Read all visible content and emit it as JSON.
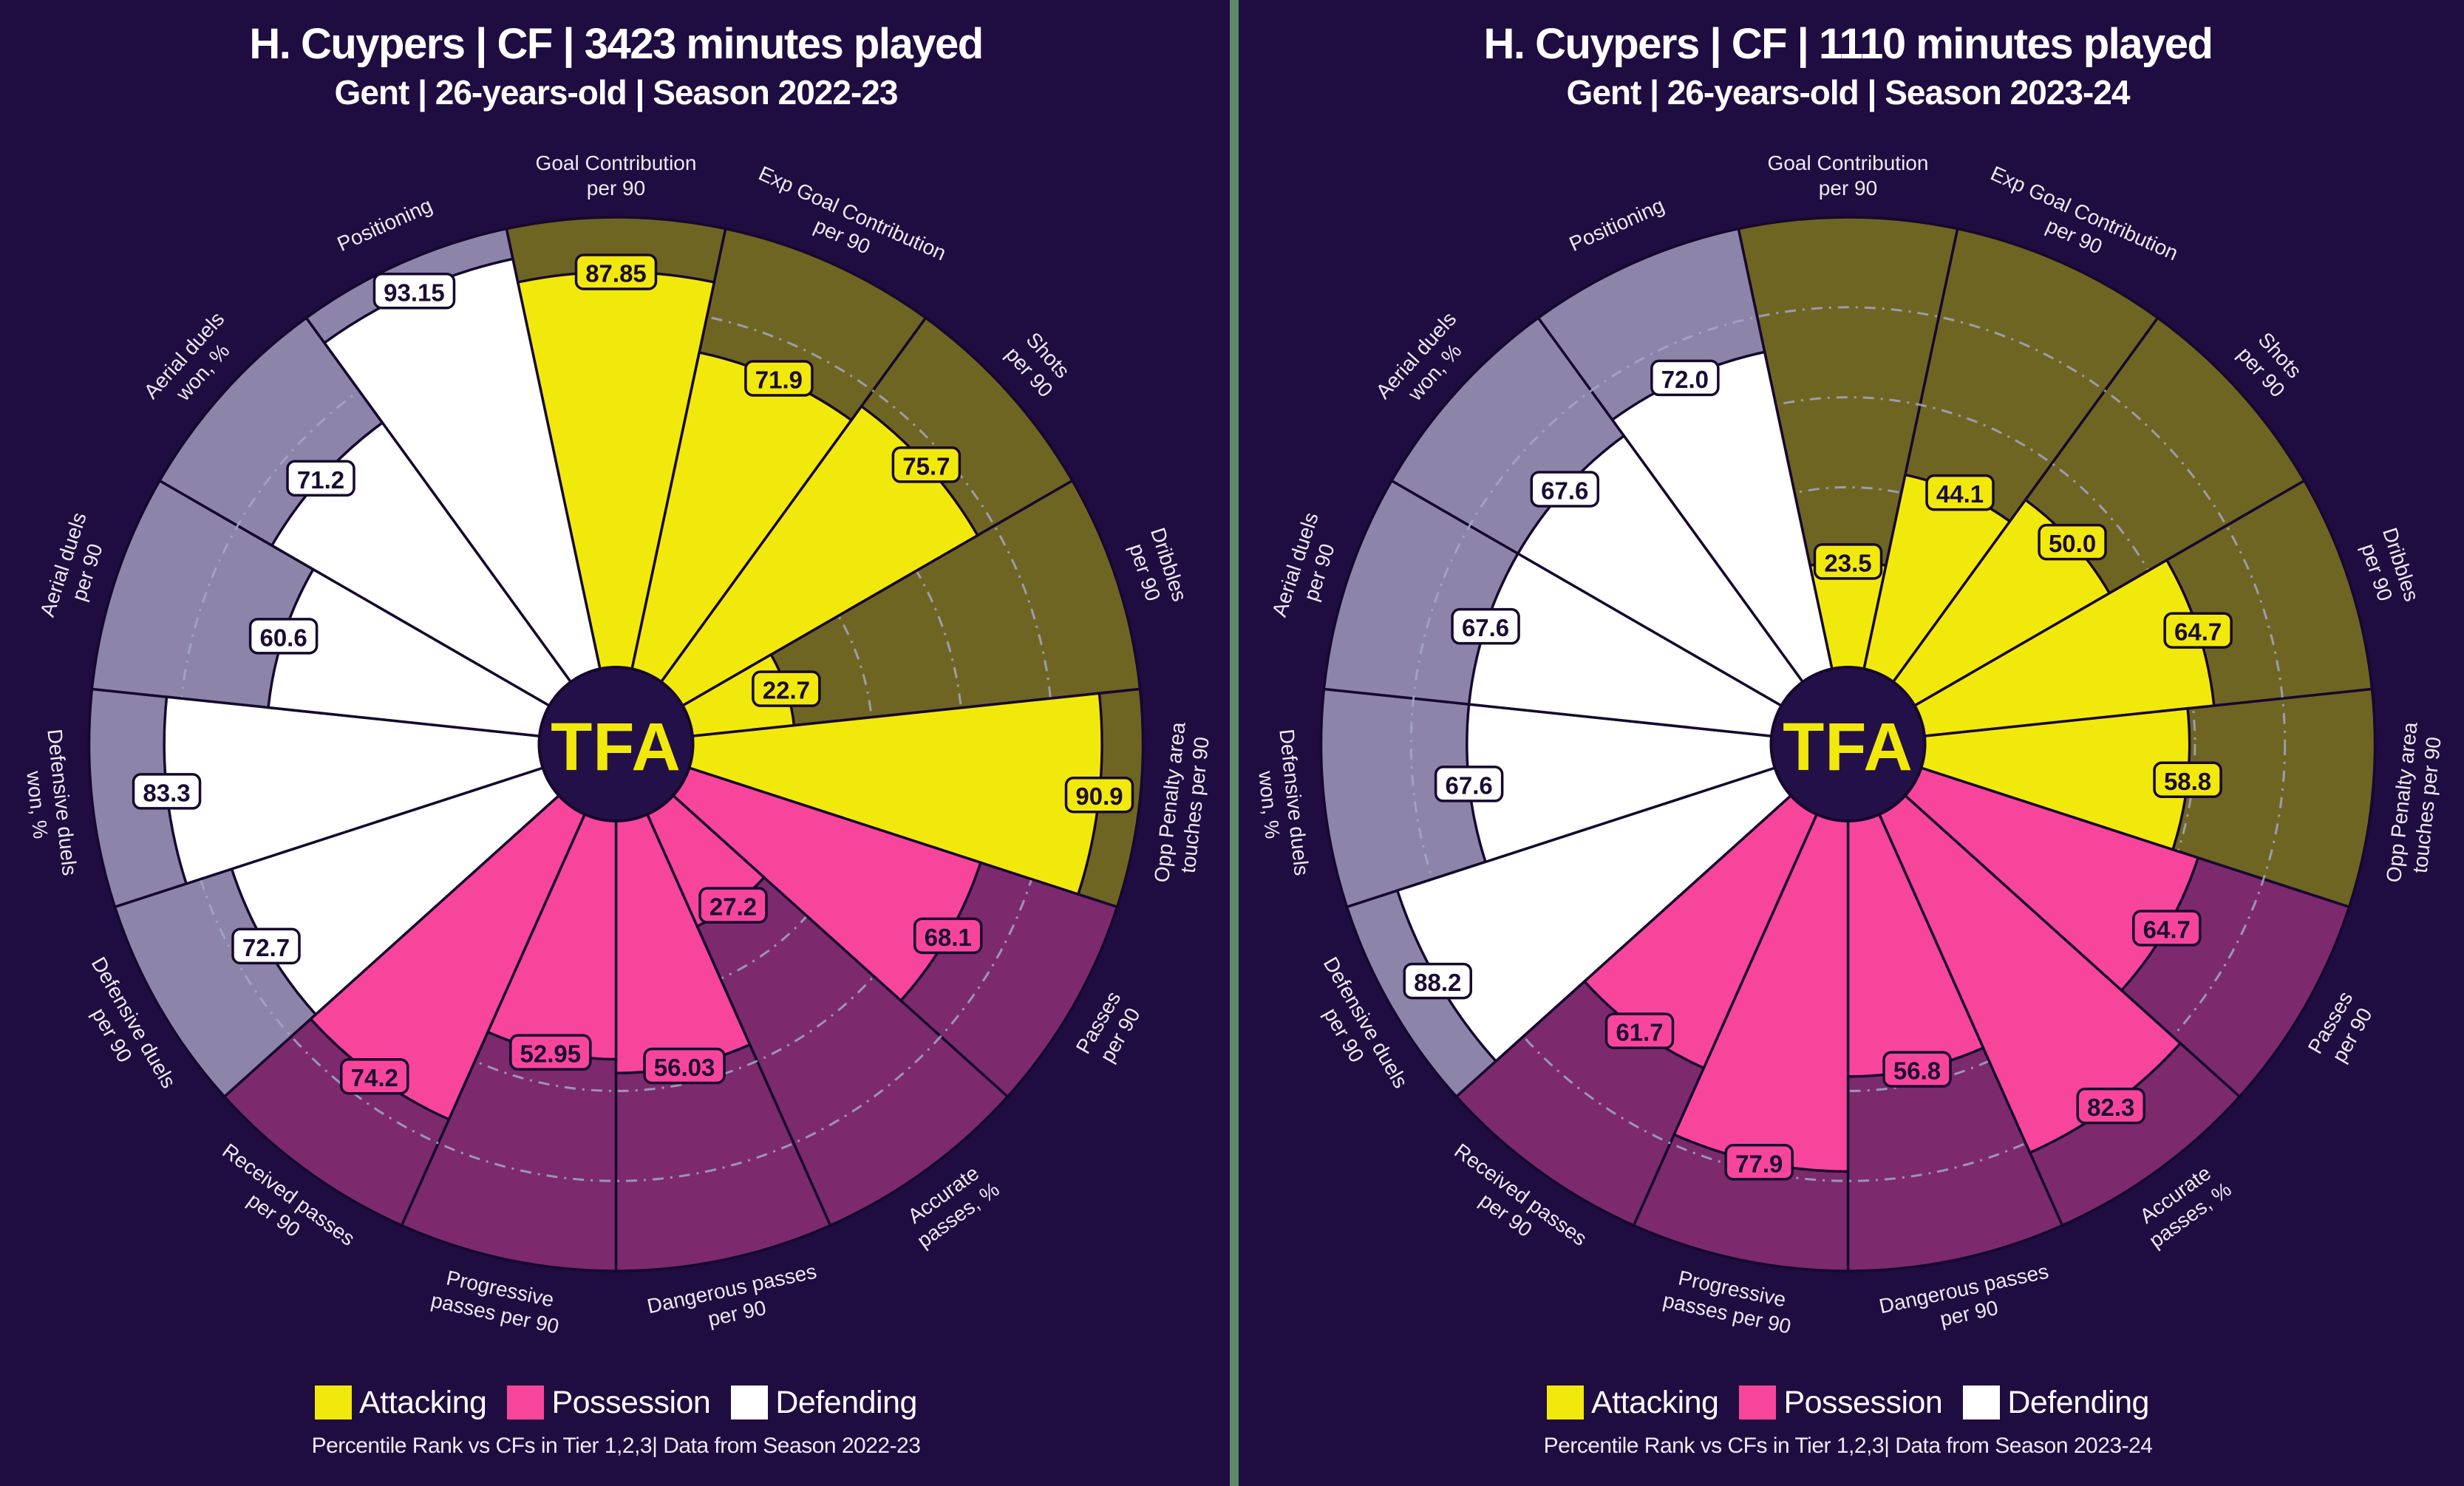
{
  "colors": {
    "background": "#1f0c40",
    "outline": "#16082e",
    "grid": "#a3a7c2",
    "hole": "#241049",
    "logo": "#f2e90c",
    "label_text": "#eceaf2",
    "value_text": "#1b0c35",
    "attacking": "#f2e90c",
    "attacking_bg": "#6f6523",
    "possession": "#f8459c",
    "possession_bg": "#7c2a6d",
    "defending": "#ffffff",
    "defending_bg": "#8d85a9"
  },
  "divider_color": "#5c8a66",
  "legend": [
    {
      "label": "Attacking",
      "key": "attacking"
    },
    {
      "label": "Possession",
      "key": "possession"
    },
    {
      "label": "Defending",
      "key": "defending"
    }
  ],
  "chart_data": [
    {
      "type": "bar",
      "subtype": "polar-pizza-percentile",
      "title": "H. Cuypers | CF | 3423 minutes played",
      "subtitle": "Gent | 26-years-old | Season 2022-23",
      "footer": "Percentile Rank vs CFs in Tier 1,2,3| Data from Season 2022-23",
      "center_logo": "TFA",
      "rlim": [
        0,
        100
      ],
      "gridlines": [
        20,
        40,
        60,
        80
      ],
      "categories": [
        "Goal Contribution per 90",
        "Exp Goal Contribution per 90",
        "Shots per 90",
        "Dribbles per 90",
        "Opp Penalty area touches per 90",
        "Passes per 90",
        "Accurate passes, %",
        "Dangerous passes per 90",
        "Progressive passes per 90",
        "Received passes per 90",
        "Defensive duels per 90",
        "Defensive duels won, %",
        "Aerial duels per 90",
        "Aerial duels won, %",
        "Positioning"
      ],
      "category_lines": [
        [
          "Goal Contribution",
          "per 90"
        ],
        [
          "Exp Goal Contribution",
          "per 90"
        ],
        [
          "Shots",
          "per 90"
        ],
        [
          "Dribbles",
          "per 90"
        ],
        [
          "Opp Penalty area",
          "touches per 90"
        ],
        [
          "Passes",
          "per 90"
        ],
        [
          "Accurate",
          "passes, %"
        ],
        [
          "Dangerous passes",
          "per 90"
        ],
        [
          "Progressive",
          "passes per 90"
        ],
        [
          "Received passes",
          "per 90"
        ],
        [
          "Defensive duels",
          "per 90"
        ],
        [
          "Defensive duels",
          "won, %"
        ],
        [
          "Aerial duels",
          "per 90"
        ],
        [
          "Aerial duels",
          "won, %"
        ],
        [
          "Positioning"
        ]
      ],
      "groups": [
        "attacking",
        "attacking",
        "attacking",
        "attacking",
        "attacking",
        "possession",
        "possession",
        "possession",
        "possession",
        "possession",
        "defending",
        "defending",
        "defending",
        "defending",
        "defending"
      ],
      "values": [
        87.85,
        71.9,
        75.7,
        22.7,
        90.9,
        68.1,
        27.2,
        56.03,
        52.95,
        74.2,
        72.7,
        83.3,
        60.6,
        71.2,
        93.15
      ],
      "value_labels": [
        "87.85",
        "71.9",
        "75.7",
        "22.7",
        "90.9",
        "68.1",
        "27.2",
        "56.03",
        "52.95",
        "74.2",
        "72.7",
        "83.3",
        "60.6",
        "71.2",
        "93.15"
      ]
    },
    {
      "type": "bar",
      "subtype": "polar-pizza-percentile",
      "title": "H. Cuypers | CF | 1110 minutes played",
      "subtitle": "Gent | 26-years-old | Season 2023-24",
      "footer": "Percentile Rank vs CFs in Tier 1,2,3| Data from Season 2023-24",
      "center_logo": "TFA",
      "rlim": [
        0,
        100
      ],
      "gridlines": [
        20,
        40,
        60,
        80
      ],
      "categories": [
        "Goal Contribution per 90",
        "Exp Goal Contribution per 90",
        "Shots per 90",
        "Dribbles per 90",
        "Opp Penalty area touches per 90",
        "Passes per 90",
        "Accurate passes, %",
        "Dangerous passes per 90",
        "Progressive passes per 90",
        "Received passes per 90",
        "Defensive duels per 90",
        "Defensive duels won, %",
        "Aerial duels per 90",
        "Aerial duels won, %",
        "Positioning"
      ],
      "category_lines": [
        [
          "Goal Contribution",
          "per 90"
        ],
        [
          "Exp Goal Contribution",
          "per 90"
        ],
        [
          "Shots",
          "per 90"
        ],
        [
          "Dribbles",
          "per 90"
        ],
        [
          "Opp Penalty area",
          "touches per 90"
        ],
        [
          "Passes",
          "per 90"
        ],
        [
          "Accurate",
          "passes, %"
        ],
        [
          "Dangerous passes",
          "per 90"
        ],
        [
          "Progressive",
          "passes per 90"
        ],
        [
          "Received passes",
          "per 90"
        ],
        [
          "Defensive duels",
          "per 90"
        ],
        [
          "Defensive duels",
          "won, %"
        ],
        [
          "Aerial duels",
          "per 90"
        ],
        [
          "Aerial duels",
          "won, %"
        ],
        [
          "Positioning"
        ]
      ],
      "groups": [
        "attacking",
        "attacking",
        "attacking",
        "attacking",
        "attacking",
        "possession",
        "possession",
        "possession",
        "possession",
        "possession",
        "defending",
        "defending",
        "defending",
        "defending",
        "defending"
      ],
      "values": [
        23.5,
        44.1,
        50.0,
        64.7,
        58.8,
        64.7,
        82.3,
        56.8,
        77.9,
        61.7,
        88.2,
        67.6,
        67.6,
        67.6,
        72.0
      ],
      "value_labels": [
        "23.5",
        "44.1",
        "50.0",
        "64.7",
        "58.8",
        "64.7",
        "82.3",
        "56.8",
        "77.9",
        "61.7",
        "88.2",
        "67.6",
        "67.6",
        "67.6",
        "72.0"
      ]
    }
  ]
}
